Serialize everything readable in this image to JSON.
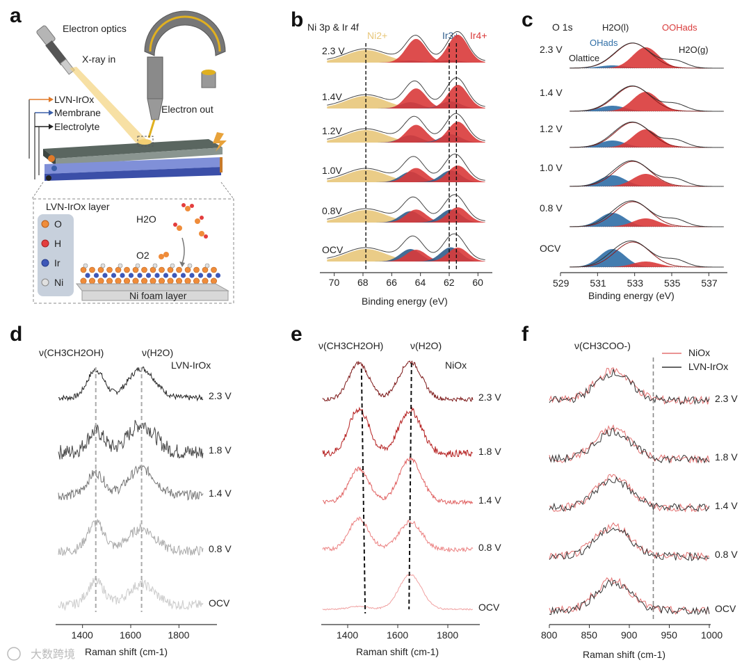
{
  "panels": {
    "a": {
      "label": "a",
      "electron_optics": "Electron optics",
      "xray_in": "X-ray in",
      "electron_out": "Electron out",
      "legend": [
        "LVN-IrOx",
        "Membrane",
        "Electrolyte"
      ],
      "layer_title": "LVN-IrOx layer",
      "atoms": [
        "O",
        "H",
        "Ir",
        "Ni"
      ],
      "h2o": "H2O",
      "o2": "O2",
      "foam": "Ni foam layer"
    },
    "b": {
      "label": "b",
      "title": "Ni 3p & Ir 4f",
      "peaks": [
        "Ni2+",
        "Ir3+",
        "Ir4+"
      ],
      "xlabel": "Binding energy (eV)",
      "ticks": [
        "70",
        "68",
        "66",
        "64",
        "62",
        "60"
      ],
      "rows": [
        "2.3 V",
        "1.4V",
        "1.2V",
        "1.0V",
        "0.8V",
        "OCV"
      ]
    },
    "c": {
      "label": "c",
      "title": "O 1s",
      "species": [
        "H2O(l)",
        "OOHads",
        "OHads",
        "Olattice",
        "H2O(g)"
      ],
      "xlabel": "Binding energy (eV)",
      "ticks": [
        "529",
        "531",
        "533",
        "535",
        "537"
      ],
      "rows": [
        "2.3 V",
        "1.4 V",
        "1.2 V",
        "1.0 V",
        "0.8 V",
        "OCV"
      ]
    },
    "d": {
      "label": "d",
      "band1": "ν(CH3CH2OH)",
      "band2": "ν(H2O)",
      "sample": "LVN-IrOx",
      "xlabel": "Raman shift (cm-1)",
      "ticks": [
        "1400",
        "1600",
        "1800"
      ],
      "rows": [
        "2.3 V",
        "1.8 V",
        "1.4 V",
        "0.8 V",
        "OCV"
      ]
    },
    "e": {
      "label": "e",
      "band1": "ν(CH3CH2OH)",
      "band2": "ν(H2O)",
      "sample": "NiOx",
      "xlabel": "Raman shift (cm-1)",
      "ticks": [
        "1400",
        "1600",
        "1800"
      ],
      "rows": [
        "2.3 V",
        "1.8 V",
        "1.4 V",
        "0.8 V",
        "OCV"
      ]
    },
    "f": {
      "label": "f",
      "band": "ν(CH3COO-)",
      "legend": [
        "NiOx",
        "LVN-IrOx"
      ],
      "xlabel": "Raman shift (cm-1)",
      "ticks": [
        "800",
        "850",
        "900",
        "950",
        "1000"
      ],
      "rows": [
        "2.3 V",
        "1.8 V",
        "1.4 V",
        "0.8 V",
        "OCV"
      ]
    }
  },
  "watermark": "大数跨境",
  "colors": {
    "ni2": "#e8c77a",
    "ir3": "#2f5d8c",
    "ir4": "#d93a3a",
    "ooh": "#d93a3a",
    "oh": "#2f6ea6",
    "green": "#4caf50",
    "dark_red": "#8b1a1a",
    "grey_curve": "#555555"
  },
  "chart_data": [
    {
      "panel": "b",
      "type": "line",
      "xlabel": "Binding energy (eV)",
      "xlim": [
        71,
        59
      ],
      "series": [
        {
          "name": "Ni2+",
          "center": 67.8
        },
        {
          "name": "Ir3+",
          "center": 62.0
        },
        {
          "name": "Ir4+",
          "center": 61.5
        }
      ],
      "categories": [
        "2.3 V",
        "1.4V",
        "1.2V",
        "1.0V",
        "0.8V",
        "OCV"
      ]
    },
    {
      "panel": "c",
      "type": "line",
      "xlabel": "Binding energy (eV)",
      "xlim": [
        529,
        538
      ],
      "categories": [
        "2.3 V",
        "1.4 V",
        "1.2 V",
        "1.0 V",
        "0.8 V",
        "OCV"
      ]
    },
    {
      "panel": "d",
      "type": "line",
      "xlabel": "Raman shift (cm-1)",
      "xlim": [
        1300,
        1900
      ],
      "markers": [
        1455,
        1645
      ],
      "categories": [
        "2.3 V",
        "1.8 V",
        "1.4 V",
        "0.8 V",
        "OCV"
      ]
    },
    {
      "panel": "e",
      "type": "line",
      "xlabel": "Raman shift (cm-1)",
      "xlim": [
        1300,
        1900
      ],
      "markers": [
        1445,
        1650
      ],
      "categories": [
        "2.3 V",
        "1.8 V",
        "1.4 V",
        "0.8 V",
        "OCV"
      ]
    },
    {
      "panel": "f",
      "type": "line",
      "xlabel": "Raman shift (cm-1)",
      "xlim": [
        800,
        1000
      ],
      "marker": 930,
      "series": [
        {
          "name": "NiOx"
        },
        {
          "name": "LVN-IrOx"
        }
      ],
      "categories": [
        "2.3 V",
        "1.8 V",
        "1.4 V",
        "0.8 V",
        "OCV"
      ]
    }
  ]
}
